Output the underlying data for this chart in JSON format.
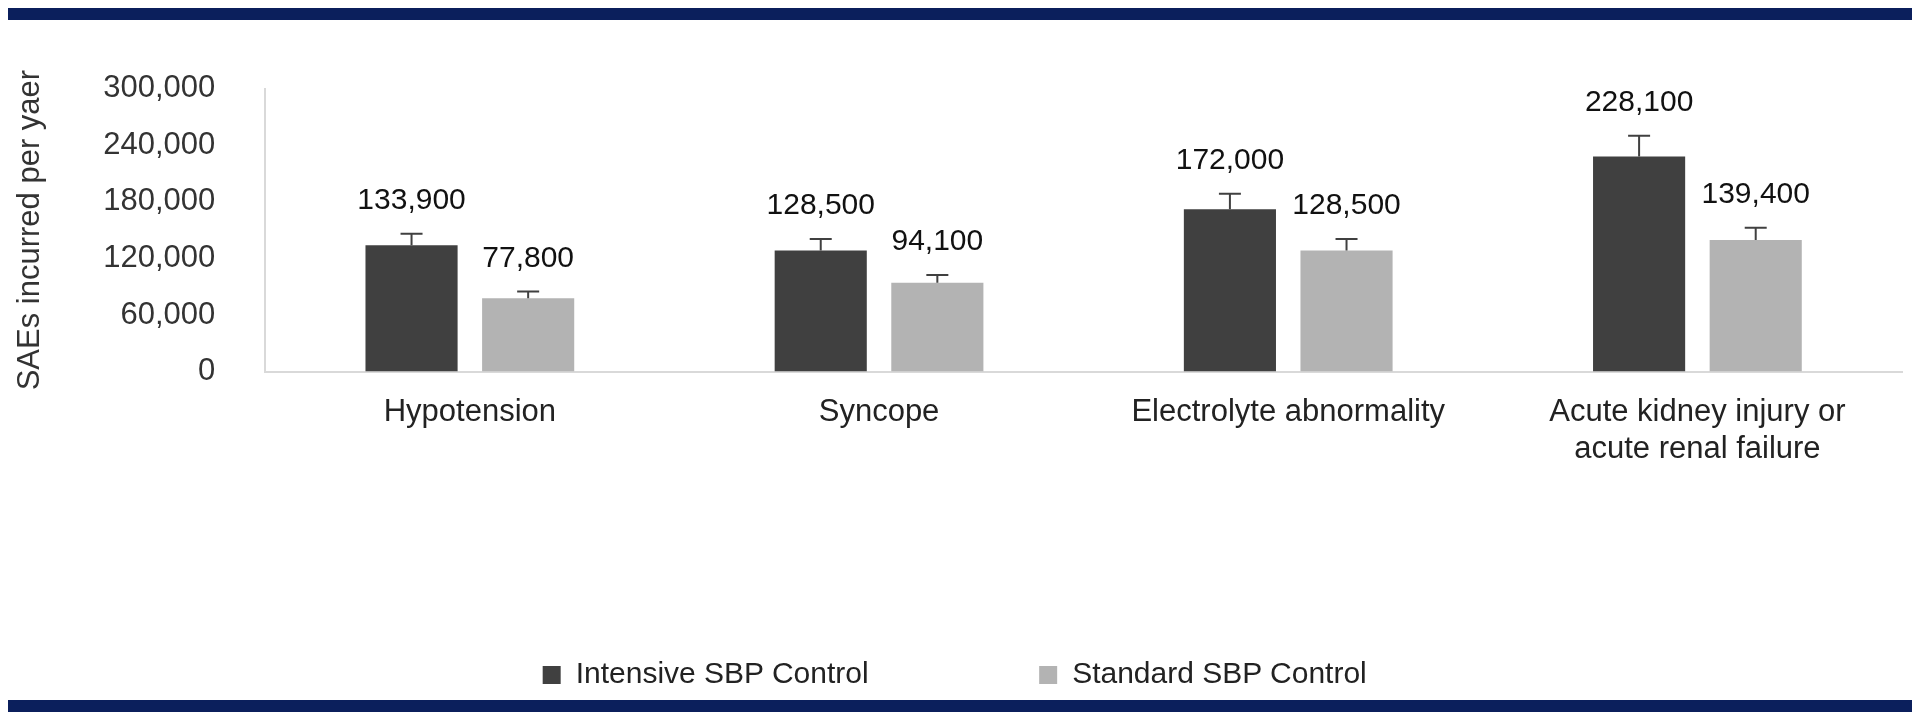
{
  "chart_data": {
    "type": "bar",
    "ylabel": "SAEs incurred per yaer",
    "categories": [
      "Hypotension",
      "Syncope",
      "Electrolyte abnormality",
      "Acute kidney injury or acute renal failure"
    ],
    "series": [
      {
        "name": "Intensive SBP Control",
        "color": "#404040",
        "values": [
          133900,
          128500,
          172000,
          228100
        ],
        "value_labels": [
          "133,900",
          "128,500",
          "172,000",
          "228,100"
        ],
        "errors": [
          [
            133900,
            146000
          ],
          [
            128500,
            140500
          ],
          [
            172000,
            188500
          ],
          [
            228100,
            250000
          ]
        ]
      },
      {
        "name": "Standard SBP Control",
        "color": "#b3b3b3",
        "values": [
          77800,
          94100,
          128500,
          139400
        ],
        "value_labels": [
          "77,800",
          "94,100",
          "128,500",
          "139,400"
        ],
        "errors": [
          [
            77800,
            85000
          ],
          [
            94100,
            102500
          ],
          [
            128500,
            140500
          ],
          [
            139400,
            152500
          ]
        ]
      }
    ],
    "ylim": [
      0,
      300000
    ],
    "yticks": [
      {
        "value": 0,
        "label": "0"
      },
      {
        "value": 60000,
        "label": "60,000"
      },
      {
        "value": 120000,
        "label": "120,000"
      },
      {
        "value": 180000,
        "label": "180,000"
      },
      {
        "value": 240000,
        "label": "240,000"
      },
      {
        "value": 300000,
        "label": "300,000"
      }
    ],
    "grid": false,
    "legend": "bottom"
  }
}
